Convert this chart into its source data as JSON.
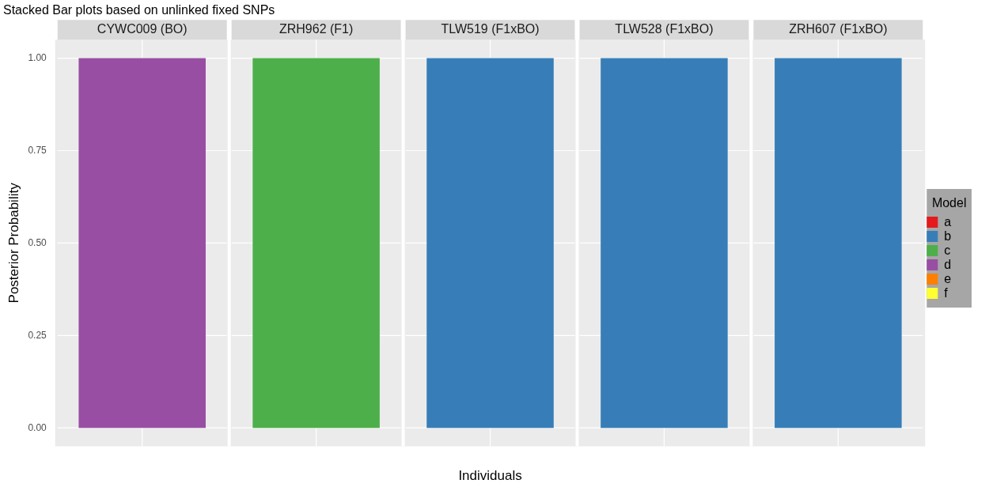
{
  "chart_data": {
    "type": "bar",
    "title": "Stacked Bar plots based on unlinked fixed SNPs",
    "xlabel": "Individuals",
    "ylabel": "Posterior Probability",
    "legend_title": "Model",
    "categories": [
      "CYWC009 (BO)",
      "ZRH962 (F1)",
      "TLW519 (F1xBO)",
      "TLW528 (F1xBO)",
      "ZRH607 (F1xBO)"
    ],
    "stacked": true,
    "ylim": [
      -0.05,
      1.05
    ],
    "yticks": [
      {
        "value": 0,
        "label": "0.00"
      },
      {
        "value": 0.25,
        "label": "0.25"
      },
      {
        "value": 0.5,
        "label": "0.50"
      },
      {
        "value": 0.75,
        "label": "0.75"
      },
      {
        "value": 1,
        "label": "1.00"
      }
    ],
    "tick_labels": "y",
    "grid": true,
    "legend": "right",
    "series": [
      {
        "name": "a",
        "color": "#e41a1c",
        "values": [
          0,
          0,
          0,
          0,
          0
        ]
      },
      {
        "name": "b",
        "color": "#377eb8",
        "values": [
          0,
          0,
          1,
          1,
          1
        ]
      },
      {
        "name": "c",
        "color": "#4daf4a",
        "values": [
          0,
          1,
          0,
          0,
          0
        ]
      },
      {
        "name": "d",
        "color": "#984ea3",
        "values": [
          1,
          0,
          0,
          0,
          0
        ]
      },
      {
        "name": "e",
        "color": "#ff7f00",
        "values": [
          0,
          0,
          0,
          0,
          0
        ]
      },
      {
        "name": "f",
        "color": "#ffff33",
        "values": [
          0,
          0,
          0,
          0,
          0
        ]
      }
    ]
  }
}
